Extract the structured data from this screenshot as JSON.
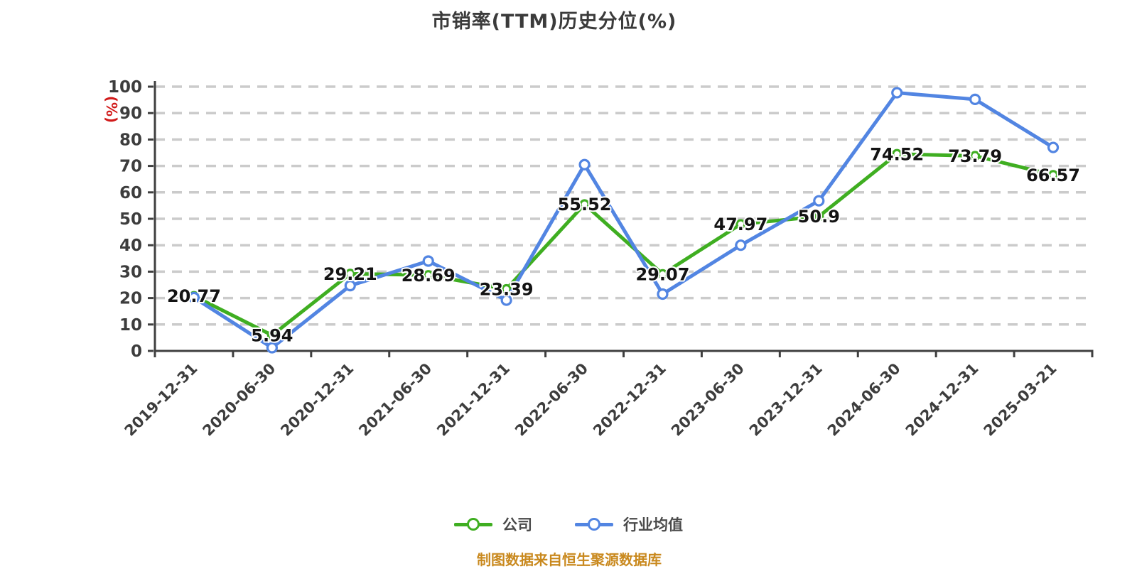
{
  "title": {
    "text": "市销率(TTM)历史分位(%)"
  },
  "footer": {
    "text": "制图数据来自恒生聚源数据库",
    "color": "#c9891e"
  },
  "legend": {
    "position": "bottom",
    "items": [
      {
        "label": "公司",
        "color": "#3fae21",
        "marker": "line-circle"
      },
      {
        "label": "行业均值",
        "color": "#5285e2",
        "marker": "line-circle"
      }
    ]
  },
  "colors": {
    "background": "#ffffff",
    "grid": "#cbcbcb",
    "axis": "#3f3f3f",
    "tick_label": "#3d3d3d",
    "data_label": "#131313",
    "company_green": "#3fae21",
    "industry_blue": "#5285e2",
    "y_unit_red": "#d11a1a",
    "source_orange": "#c9891e"
  },
  "chart_data": {
    "type": "line",
    "title": "市销率(TTM)历史分位(%)",
    "xlabel": "",
    "ylabel": "(%)",
    "ylim": [
      0,
      100
    ],
    "y_ticks": [
      0,
      10,
      20,
      30,
      40,
      50,
      60,
      70,
      80,
      90,
      100
    ],
    "grid": "horizontal-dashed",
    "legend_position": "bottom",
    "categories": [
      "2019-12-31",
      "2020-06-30",
      "2020-12-31",
      "2021-06-30",
      "2021-12-31",
      "2022-06-30",
      "2022-12-31",
      "2023-06-30",
      "2023-12-31",
      "2024-06-30",
      "2024-12-31",
      "2025-03-21"
    ],
    "series": [
      {
        "name": "公司",
        "color": "#3fae21",
        "show_labels": true,
        "values": [
          20.77,
          5.94,
          29.21,
          28.69,
          23.39,
          55.52,
          29.07,
          47.97,
          50.9,
          74.52,
          73.79,
          66.57
        ]
      },
      {
        "name": "行业均值",
        "color": "#5285e2",
        "show_labels": false,
        "values": [
          20.2,
          1.2,
          24.7,
          34,
          19.2,
          70.5,
          21.5,
          40,
          56.8,
          97.7,
          95.2,
          77
        ]
      }
    ]
  }
}
